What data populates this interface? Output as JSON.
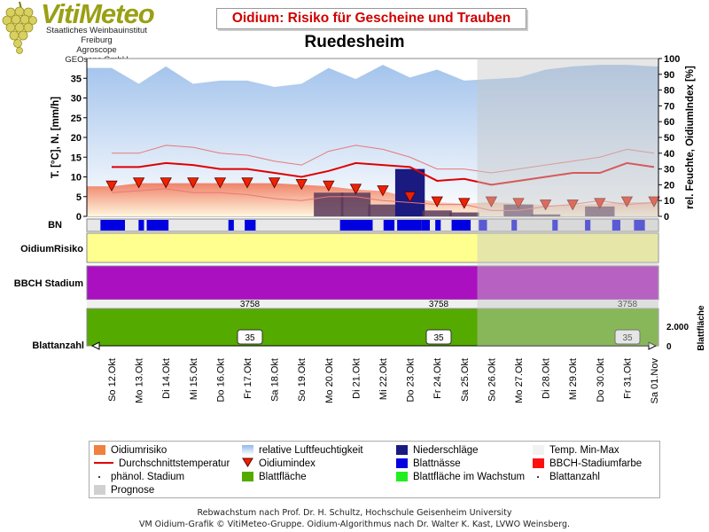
{
  "logo": {
    "title": "VitiMeteo",
    "line1": "Staatliches Weinbauinstitut Freiburg",
    "line2": "Agroscope",
    "line3": "GEOsens GmbH"
  },
  "title": "Oidium: Risiko für Gescheine und Trauben",
  "station": "Ruedesheim",
  "colors": {
    "temp_line": "#e00000",
    "minmax_band": "#f4b0a8",
    "oidium_fill": "#f08050",
    "humidity": "#a8c8ec",
    "rain": "#1a1a80",
    "leafwet": "#0000e0",
    "bbch": "#aa10c0",
    "leafarea": "#55aa00",
    "risk": "#ffff90",
    "marker": "#ee2200",
    "forecast": "#c8c8c8"
  },
  "chart_data": {
    "type": "line",
    "x": [
      "So 12.Okt",
      "Mo 13.Okt",
      "Di 14.Okt",
      "Mi 15.Okt",
      "Do 16.Okt",
      "Fr 17.Okt",
      "Sa 18.Okt",
      "So 19.Okt",
      "Mo 20.Okt",
      "Di 21.Okt",
      "Mi 22.Okt",
      "Do 23.Okt",
      "Fr 24.Okt",
      "Sa 25.Okt",
      "So 26.Okt",
      "Mo 27.Okt",
      "Di 28.Okt",
      "Mi 29.Okt",
      "Do 30.Okt",
      "Fr 31.Okt",
      "Sa 01.Nov"
    ],
    "left_axis": {
      "label": "T. [°C], N. [mm/h]",
      "ticks": [
        0,
        5,
        10,
        15,
        20,
        25,
        30,
        35
      ],
      "range": [
        0,
        40
      ]
    },
    "right_axis": {
      "label": "rel. Feuchte, OidiumIndex [%]",
      "ticks": [
        0,
        10,
        20,
        30,
        40,
        50,
        60,
        70,
        80,
        90,
        100
      ],
      "range": [
        0,
        100
      ]
    },
    "forecast_from": "So 26.Okt",
    "series": [
      {
        "name": "relative Luftfeuchtigkeit",
        "values": [
          94,
          84,
          95,
          84,
          86,
          86,
          82,
          84,
          94,
          87,
          96,
          88,
          93,
          86,
          87,
          88,
          93,
          95,
          96,
          96,
          95
        ]
      },
      {
        "name": "Durchschnittstemperatur",
        "values": [
          12.5,
          12.5,
          13.5,
          13,
          12,
          12,
          11,
          10,
          11.5,
          13.5,
          13,
          12.5,
          9,
          9.5,
          8,
          9,
          10,
          11,
          11,
          13.5,
          12.5
        ]
      },
      {
        "name": "Temp. Min-Max",
        "min": [
          6,
          6.5,
          7,
          6,
          6,
          5.5,
          4.5,
          4,
          5,
          5,
          4,
          3.5,
          3,
          3,
          1.5,
          1.5,
          2.5,
          3,
          4,
          3,
          3.5
        ],
        "max": [
          16,
          16,
          18,
          17.5,
          16,
          15.5,
          14,
          13,
          16.5,
          18,
          17,
          15,
          12,
          12,
          11,
          12,
          13,
          14,
          15,
          17,
          16
        ]
      },
      {
        "name": "Oidiumindex",
        "values": [
          19,
          21,
          21,
          21,
          21,
          21,
          21,
          20,
          19,
          17,
          16,
          12,
          9,
          8,
          9,
          8,
          7,
          7,
          8,
          9,
          9
        ]
      },
      {
        "name": "Niederschläge",
        "values": [
          0,
          0,
          0,
          0,
          0,
          0,
          0,
          0,
          6,
          6,
          3,
          12,
          1.5,
          1,
          0,
          3,
          0.5,
          0,
          2.5,
          0,
          0
        ]
      }
    ],
    "rows": {
      "bn_label": "BN",
      "risk_label": "OidiumRisiko",
      "bbch_label": "BBCH Stadium",
      "blattanzahl_label": "Blattanzahl",
      "blattflaeche_label": "Blattfläche",
      "leaf_area_ticks": [
        "2.000",
        "0"
      ],
      "leaf_area_values": [
        "3758",
        "3758",
        "3758"
      ],
      "leaf_count_values": [
        "35",
        "35",
        "35"
      ]
    }
  },
  "legend": [
    {
      "label": "Oidiumrisiko",
      "icon": "orange-square"
    },
    {
      "label": "relative Luftfeuchtigkeit",
      "icon": "lightblue-gradient"
    },
    {
      "label": "Niederschläge",
      "icon": "navy-square"
    },
    {
      "label": "Temp. Min-Max",
      "icon": "pale-square"
    },
    {
      "label": "Durchschnittstemperatur",
      "icon": "red-line"
    },
    {
      "label": "Oidiumindex",
      "icon": "red-triangle"
    },
    {
      "label": "Blattnässe",
      "icon": "blue-square"
    },
    {
      "label": "BBCH-Stadiumfarbe",
      "icon": "red-square"
    },
    {
      "label": "phänol. Stadium",
      "icon": "dot"
    },
    {
      "label": "Blattfläche",
      "icon": "green-square"
    },
    {
      "label": "Blattfläche im Wachstum",
      "icon": "lightgreen-square"
    },
    {
      "label": "Blattanzahl",
      "icon": "dot"
    },
    {
      "label": "Prognose",
      "icon": "grey-square"
    }
  ],
  "footer": {
    "line1": "Rebwachstum nach Prof. Dr. H. Schultz, Hochschule Geisenheim University",
    "line2": "VM Oidium-Grafik © VitiMeteo-Gruppe. Oidium-Algorithmus nach Dr. Walter K. Kast, LVWO Weinsberg."
  }
}
